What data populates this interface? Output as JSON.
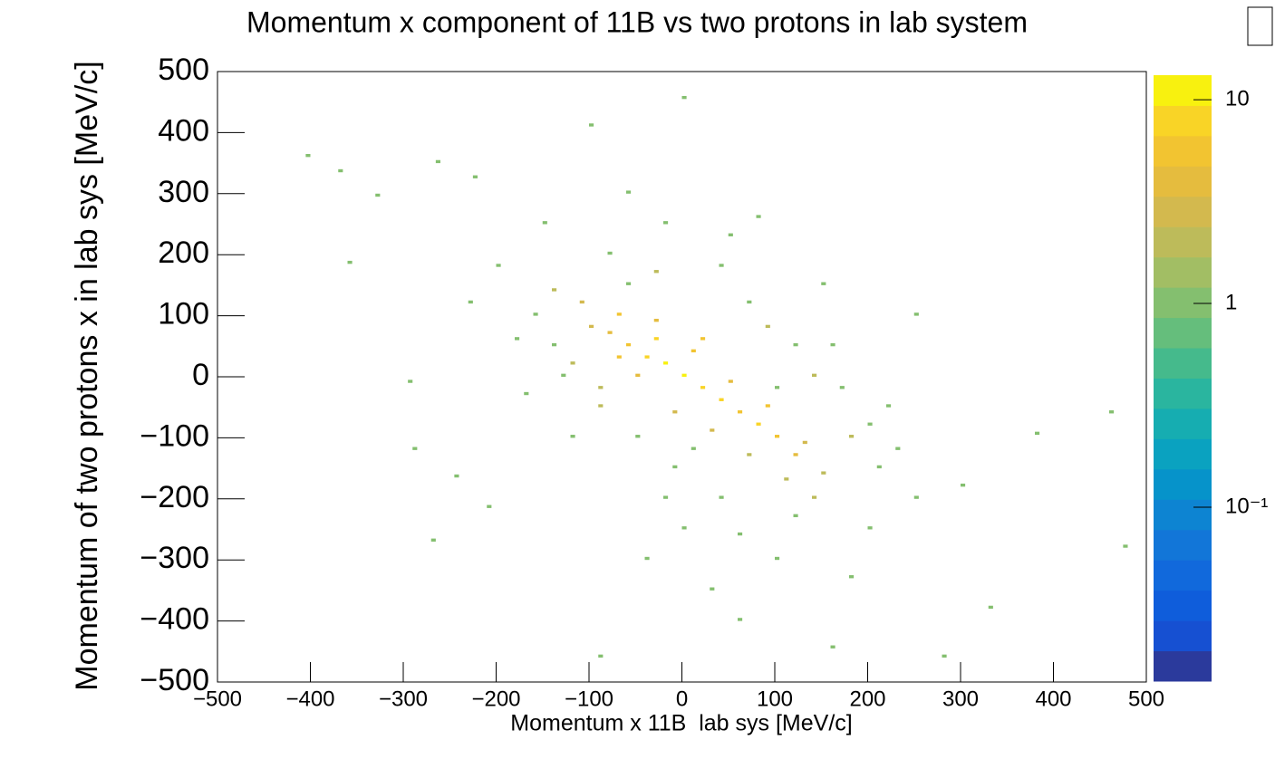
{
  "chart_data": {
    "type": "hist2d",
    "title": "Momentum x component of 11B vs two protons in lab system",
    "x_label": "Momentum x 11B  lab sys [MeV/c]",
    "y_label": "Momentum of two protons x in lab sys [MeV/c]",
    "xlim": [
      -500,
      500
    ],
    "ylim": [
      -500,
      500
    ],
    "bin_width": 5,
    "xticks": [
      {
        "value": -500,
        "label": "−500"
      },
      {
        "value": -400,
        "label": "−400"
      },
      {
        "value": -300,
        "label": "−300"
      },
      {
        "value": -200,
        "label": "−200"
      },
      {
        "value": -100,
        "label": "−100"
      },
      0,
      100,
      200,
      300,
      400,
      500
    ],
    "yticks": [
      {
        "value": -500,
        "label": "−500"
      },
      {
        "value": -400,
        "label": "−400"
      },
      {
        "value": -300,
        "label": "−300"
      },
      {
        "value": -200,
        "label": "−200"
      },
      {
        "value": -100,
        "label": "−100"
      },
      0,
      100,
      200,
      300,
      400,
      500
    ],
    "zlim": [
      0.014,
      13.2
    ],
    "zticks": [
      {
        "value": 0.1,
        "label": "10⁻¹"
      },
      1,
      10
    ],
    "log_z": true,
    "colorscale": [
      "#2b3a9c",
      "#1650d2",
      "#0f5ddb",
      "#1169dc",
      "#1276d8",
      "#0d84d2",
      "#0693ca",
      "#0aa2c0",
      "#16adb1",
      "#2ab59f",
      "#45ba8c",
      "#65be7c",
      "#84bf6f",
      "#a2be64",
      "#bdbb5a",
      "#d3b94e",
      "#e5bc3e",
      "#f2c431",
      "#f9d426",
      "#f8f10f"
    ],
    "x": [
      -405,
      -370,
      -330,
      -360,
      -265,
      -225,
      -295,
      -290,
      -270,
      -210,
      -245,
      460,
      475,
      380,
      0,
      -100,
      -90,
      160,
      280,
      330,
      -150,
      -200,
      -180,
      -60,
      50,
      150,
      250,
      200,
      -120,
      -40,
      100,
      30,
      -20,
      220,
      300,
      180,
      -170,
      -230,
      120,
      60,
      -80,
      -140,
      -60,
      40,
      90,
      170,
      230,
      140,
      -10,
      60,
      -100,
      -80,
      -60,
      -40,
      -20,
      0,
      20,
      40,
      60,
      80,
      100,
      120,
      -110,
      -70,
      -30,
      10,
      50,
      90,
      130,
      -50,
      -120,
      -90,
      -10,
      30,
      70,
      110,
      150,
      -30,
      20,
      -70,
      -130,
      -160,
      -20,
      80,
      160,
      200,
      -50,
      10,
      100,
      250,
      0,
      40,
      120,
      180,
      -90,
      -140,
      70,
      140,
      210,
      -30
    ],
    "y": [
      360,
      335,
      295,
      185,
      350,
      325,
      -10,
      -120,
      -270,
      -215,
      -165,
      -60,
      -280,
      -95,
      455,
      410,
      -460,
      -445,
      -460,
      -380,
      250,
      180,
      60,
      300,
      230,
      150,
      100,
      -250,
      -100,
      -300,
      -300,
      -350,
      -200,
      -50,
      -180,
      -330,
      -30,
      120,
      50,
      -400,
      200,
      140,
      150,
      180,
      80,
      -20,
      -120,
      -200,
      -150,
      -260,
      80,
      70,
      50,
      30,
      20,
      0,
      -20,
      -40,
      -60,
      -80,
      -100,
      -130,
      120,
      100,
      60,
      40,
      -10,
      -50,
      -110,
      0,
      20,
      -20,
      -60,
      -90,
      -130,
      -170,
      -160,
      90,
      60,
      30,
      0,
      100,
      250,
      260,
      50,
      -80,
      -100,
      -120,
      -20,
      -200,
      -250,
      -200,
      -230,
      -100,
      -50,
      50,
      120,
      0,
      -150,
      170
    ],
    "values": [
      1,
      1,
      1,
      1,
      1,
      1,
      1,
      1,
      1,
      1,
      1,
      1,
      1,
      1,
      1,
      1,
      1,
      1,
      1,
      1,
      1,
      1,
      1,
      1,
      1,
      1,
      1,
      1,
      1,
      1,
      1,
      1,
      1,
      1,
      1,
      1,
      1,
      1,
      1,
      1,
      1,
      2,
      1,
      1,
      2,
      1,
      1,
      2,
      1,
      1,
      3,
      4,
      6,
      8,
      10,
      12,
      9,
      7,
      6,
      8,
      6,
      4,
      3,
      5,
      7,
      6,
      4,
      5,
      3,
      4,
      2,
      2,
      3,
      3,
      2,
      2,
      2,
      4,
      5,
      6,
      1,
      1,
      1,
      1,
      1,
      1,
      1,
      1,
      1,
      1,
      1,
      1,
      1,
      2,
      2,
      1,
      1,
      2,
      1,
      2
    ]
  }
}
